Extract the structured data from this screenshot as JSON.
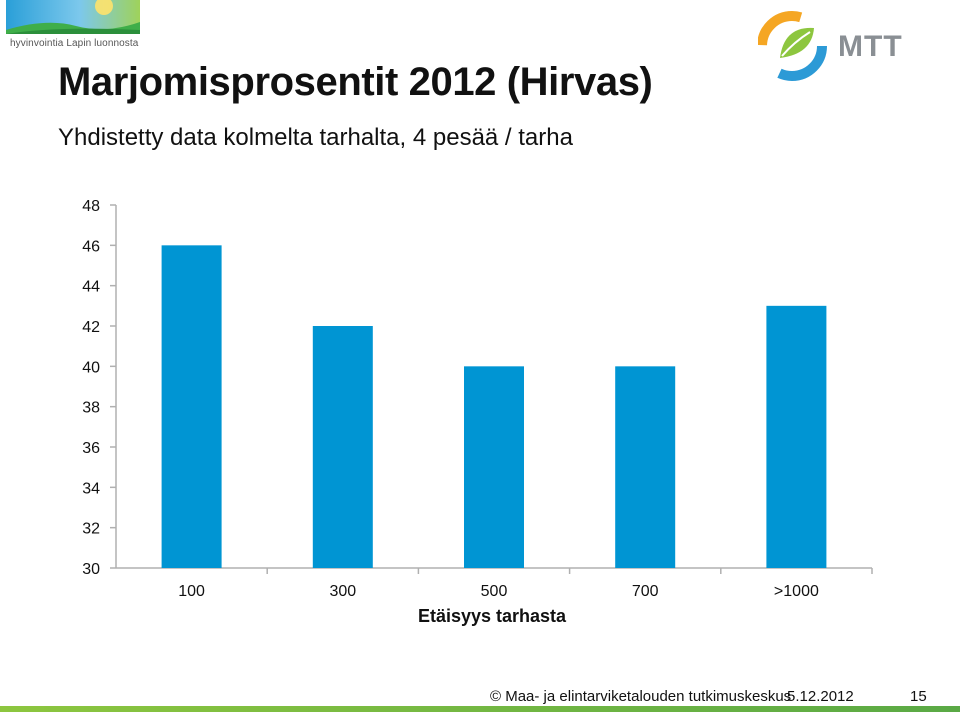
{
  "header": {
    "logo_left_text": "hyvinvointia Lapin luonnosta",
    "logo_right_text": "MTT"
  },
  "slide": {
    "title": "Marjomisprosentit 2012 (Hirvas)",
    "subtitle": "Yhdistetty data kolmelta tarhalta, 4 pesää / tarha"
  },
  "chart_data": {
    "type": "bar",
    "categories": [
      "100",
      "300",
      "500",
      "700",
      ">1000"
    ],
    "values": [
      46,
      42,
      40,
      40,
      43
    ],
    "title": "",
    "xlabel": "Etäisyys tarhasta",
    "ylabel": "",
    "ylim": [
      30,
      48
    ],
    "yticks": [
      30,
      32,
      34,
      36,
      38,
      40,
      42,
      44,
      46,
      48
    ],
    "grid": false,
    "legend": "none",
    "bar_color": "#0095d3",
    "axis_color": "#b0b0b0"
  },
  "footer": {
    "copyright": "© Maa- ja elintarviketalouden tutkimuskeskus",
    "date": "5.12.2012",
    "page_number": "15"
  }
}
